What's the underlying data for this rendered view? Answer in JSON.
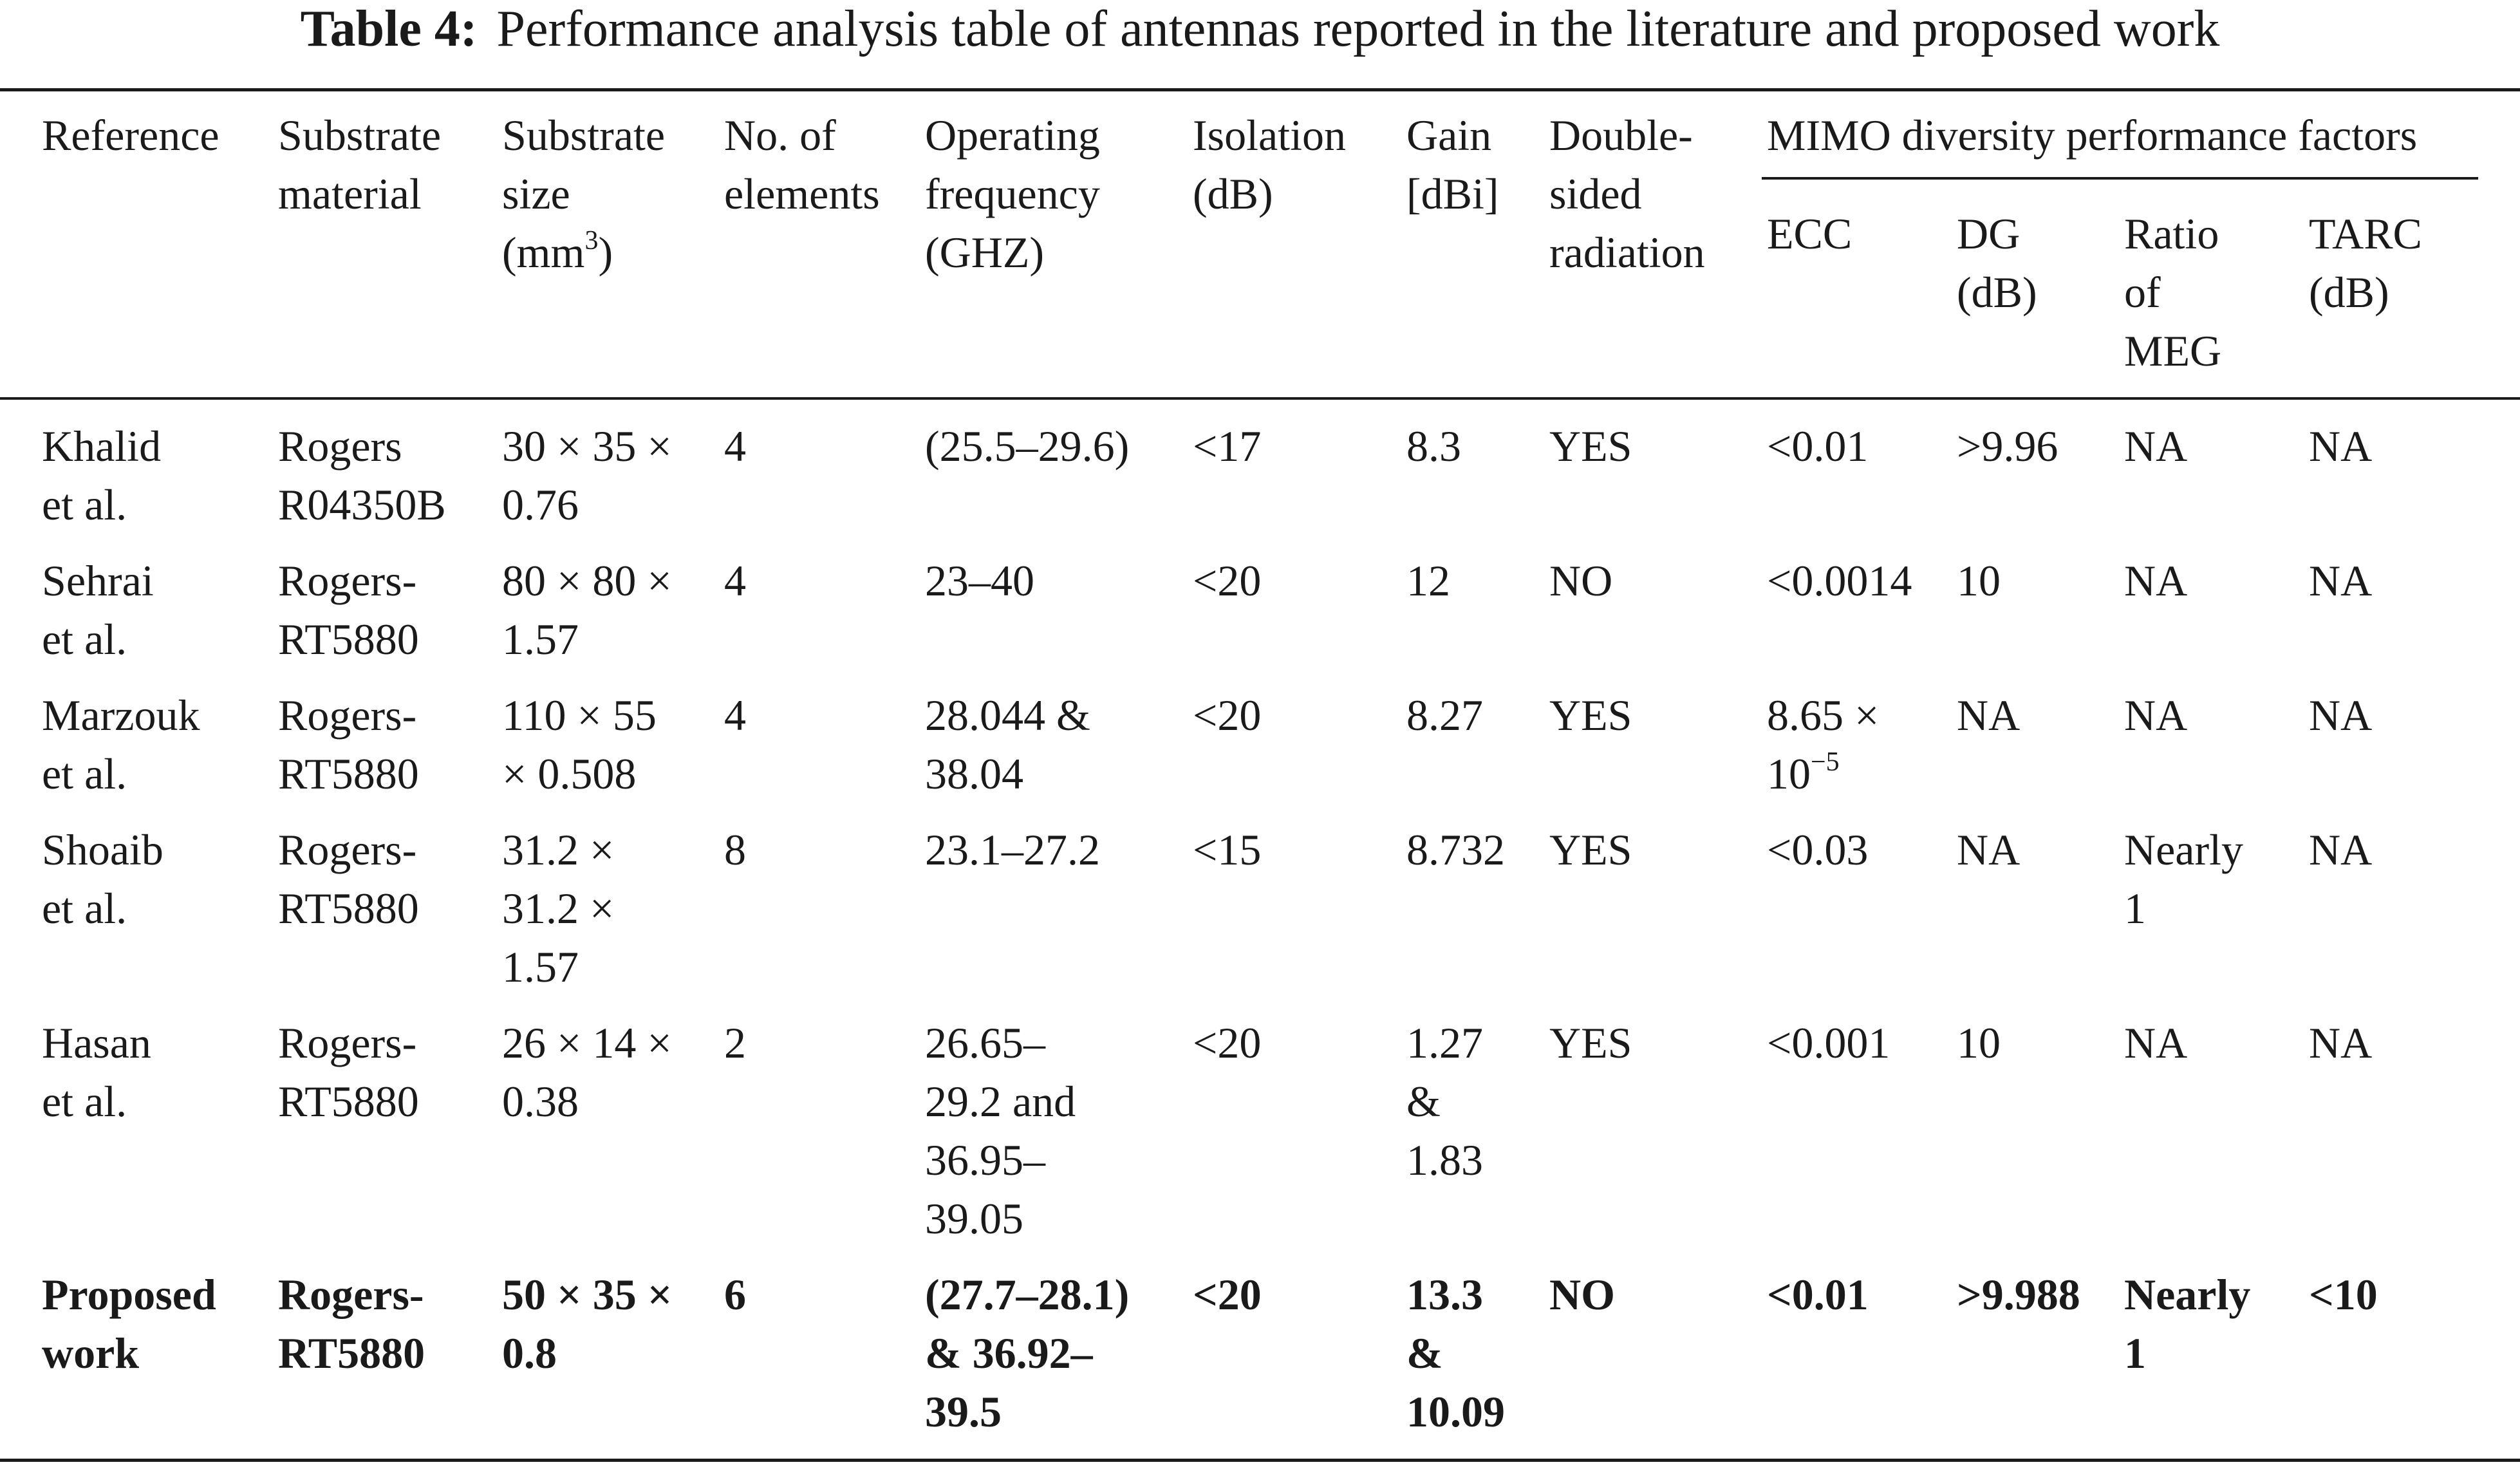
{
  "caption": {
    "label": "Table 4:",
    "text": "Performance analysis table of antennas reported in the literature and proposed work"
  },
  "header": {
    "reference": [
      "Reference"
    ],
    "substrate_material": [
      "Substrate",
      "material"
    ],
    "substrate_size": [
      "Substrate",
      "size"
    ],
    "substrate_size_unit_base": "(mm",
    "substrate_size_unit_sup": "3",
    "substrate_size_unit_close": ")",
    "elements": [
      "No. of",
      "elements"
    ],
    "frequency": [
      "Operating",
      "frequency",
      "(GHZ)"
    ],
    "isolation": [
      "Isolation",
      "(dB)"
    ],
    "gain": [
      "Gain",
      "[dBi]"
    ],
    "radiation": [
      "Double-",
      "sided",
      "radiation"
    ],
    "mimo_group": "MIMO diversity performance factors",
    "ecc": [
      "ECC"
    ],
    "dg": [
      "DG",
      "(dB)"
    ],
    "meg": [
      "Ratio",
      "of",
      "MEG"
    ],
    "tarc": [
      "TARC",
      "(dB)"
    ]
  },
  "rows": [
    {
      "reference": [
        "Khalid",
        "et al."
      ],
      "material": [
        "Rogers",
        "R04350B"
      ],
      "size": [
        "30 × 35 ×",
        "0.76"
      ],
      "elements": [
        "4"
      ],
      "frequency": [
        "(25.5–29.6)"
      ],
      "isolation": [
        "<17"
      ],
      "gain": [
        "8.3"
      ],
      "radiation": [
        "YES"
      ],
      "ecc": [
        "<0.01"
      ],
      "dg": [
        ">9.96"
      ],
      "meg": [
        "NA"
      ],
      "tarc": [
        "NA"
      ]
    },
    {
      "reference": [
        "Sehrai",
        "et al."
      ],
      "material": [
        "Rogers-",
        "RT5880"
      ],
      "size": [
        "80 × 80 ×",
        "1.57"
      ],
      "elements": [
        "4"
      ],
      "frequency": [
        "23–40"
      ],
      "isolation": [
        "<20"
      ],
      "gain": [
        "12"
      ],
      "radiation": [
        "NO"
      ],
      "ecc": [
        "<0.0014"
      ],
      "dg": [
        "10"
      ],
      "meg": [
        "NA"
      ],
      "tarc": [
        "NA"
      ]
    },
    {
      "reference": [
        "Marzouk",
        "et al."
      ],
      "material": [
        "Rogers-",
        "RT5880"
      ],
      "size": [
        "110 × 55",
        "× 0.508"
      ],
      "elements": [
        "4"
      ],
      "frequency": [
        "28.044 &",
        "38.04"
      ],
      "isolation": [
        "<20"
      ],
      "gain": [
        "8.27"
      ],
      "radiation": [
        "YES"
      ],
      "ecc": [
        "8.65 ×"
      ],
      "ecc_exp_base": "10",
      "ecc_exp_sup": "−5",
      "dg": [
        "NA"
      ],
      "meg": [
        "NA"
      ],
      "tarc": [
        "NA"
      ]
    },
    {
      "reference": [
        "Shoaib",
        "et al."
      ],
      "material": [
        "Rogers-",
        "RT5880"
      ],
      "size": [
        "31.2 ×",
        "31.2 ×",
        "1.57"
      ],
      "elements": [
        "8"
      ],
      "frequency": [
        "23.1–27.2"
      ],
      "isolation": [
        "<15"
      ],
      "gain": [
        "8.732"
      ],
      "radiation": [
        "YES"
      ],
      "ecc": [
        "<0.03"
      ],
      "dg": [
        "NA"
      ],
      "meg": [
        "Nearly",
        "1"
      ],
      "tarc": [
        "NA"
      ]
    },
    {
      "reference": [
        "Hasan",
        "et al."
      ],
      "material": [
        "Rogers-",
        "RT5880"
      ],
      "size": [
        "26 × 14 ×",
        "0.38"
      ],
      "elements": [
        "2"
      ],
      "frequency": [
        "26.65–",
        "29.2 and",
        "36.95–",
        "39.05"
      ],
      "isolation": [
        "<20"
      ],
      "gain": [
        "1.27",
        "&",
        "1.83"
      ],
      "radiation": [
        "YES"
      ],
      "ecc": [
        "<0.001"
      ],
      "dg": [
        "10"
      ],
      "meg": [
        "NA"
      ],
      "tarc": [
        "NA"
      ]
    },
    {
      "reference": [
        "Proposed",
        "work"
      ],
      "material": [
        "Rogers-",
        "RT5880"
      ],
      "size": [
        "50 × 35 ×",
        "0.8"
      ],
      "elements": [
        "6"
      ],
      "frequency": [
        "(27.7–28.1)",
        "& 36.92–",
        "39.5"
      ],
      "isolation": [
        "<20"
      ],
      "gain": [
        "13.3",
        "&",
        "10.09"
      ],
      "radiation": [
        "NO"
      ],
      "ecc": [
        "<0.01"
      ],
      "dg": [
        ">9.988"
      ],
      "meg": [
        "Nearly",
        "1"
      ],
      "tarc": [
        "<10"
      ]
    }
  ]
}
